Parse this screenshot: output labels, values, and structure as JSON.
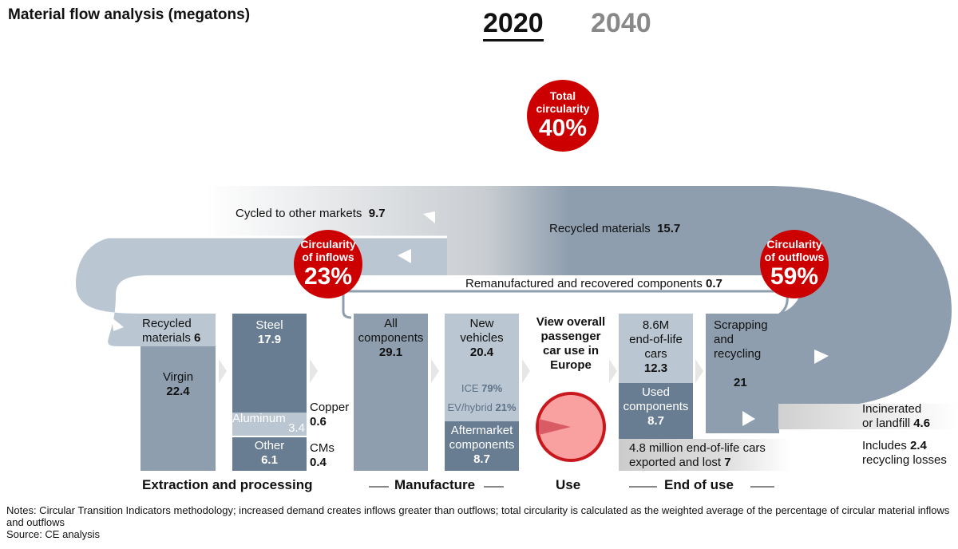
{
  "title": "Material flow analysis (megatons)",
  "years": {
    "active": "2020",
    "inactive": "2040"
  },
  "total_circularity": {
    "label1": "Total",
    "label2": "circularity",
    "value": "40%"
  },
  "inflows": {
    "label1": "Circularity",
    "label2": "of inflows",
    "value": "23%"
  },
  "outflows": {
    "label1": "Circularity",
    "label2": "of outflows",
    "value": "59%"
  },
  "flows": {
    "cycled_label": "Cycled to other markets",
    "cycled_value": "9.7",
    "recycled_label": "Recycled materials",
    "recycled_value": "15.7",
    "reman_label": "Remanufactured and recovered components",
    "reman_value": "0.7",
    "incinerated_label1": "Incinerated",
    "incinerated_label2": "or landfill",
    "incinerated_value": "4.6",
    "includes_label": "Includes",
    "includes_value": "2.4",
    "includes_label2": "recycling losses",
    "exported_label1": "4.8 million end-of-life cars",
    "exported_label2": "exported and lost",
    "exported_value": "7"
  },
  "boxes": {
    "recycled_l1": "Recycled",
    "recycled_l2": "materials",
    "recycled_v": "6",
    "virgin_l": "Virgin",
    "virgin_v": "22.4",
    "steel_l": "Steel",
    "steel_v": "17.9",
    "aluminum_l": "Aluminum",
    "aluminum_v": "3.4",
    "copper_l": "Copper",
    "copper_v": "0.6",
    "other_l": "Other",
    "other_v": "6.1",
    "cms_l": "CMs",
    "cms_v": "0.4",
    "all_l1": "All",
    "all_l2": "components",
    "all_v": "29.1",
    "new_l1": "New",
    "new_l2": "vehicles",
    "new_v": "20.4",
    "ice_l": "ICE",
    "ice_v": "79%",
    "ev_l": "EV/hybrid",
    "ev_v": "21%",
    "after_l1": "Aftermarket",
    "after_l2": "components",
    "after_v": "8.7",
    "use_l": "View overall passenger car use in Europe",
    "eol_l1": "8.6M",
    "eol_l2": "end-of-life",
    "eol_l3": "cars",
    "eol_v": "12.3",
    "used_l1": "Used",
    "used_l2": "components",
    "used_v": "8.7",
    "scrap_l1": "Scrapping",
    "scrap_l2": "and recycling",
    "scrap_v": "21"
  },
  "stages": [
    "Extraction and processing",
    "Manufacture",
    "Use",
    "End of use"
  ],
  "notes": "Notes: Circular Transition Indicators methodology; increased demand creates inflows greater than outflows; total circularity is calculated as the weighted average of the percentage of circular material inflows and outflows",
  "source": "Source: CE analysis"
}
